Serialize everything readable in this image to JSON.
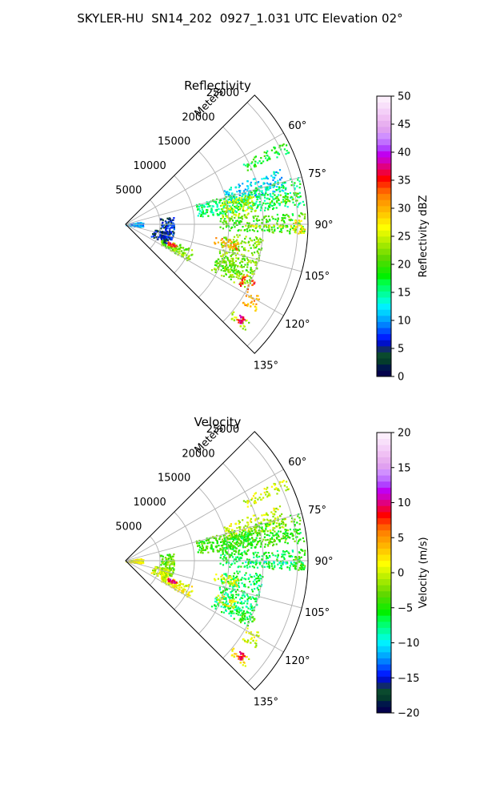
{
  "title": "SKYLER-HU  SN14_202  0927_1.031 UTC Elevation 02°",
  "panels": [
    {
      "title": "Reflectivity",
      "r_label": "Meters",
      "r_ticks": [
        "5000",
        "10000",
        "15000",
        "20000",
        "25000"
      ],
      "az_ticks": [
        "60°",
        "75°",
        "90°",
        "105°",
        "120°",
        "135°"
      ],
      "colorbar": {
        "label": "Reflectivity dBZ",
        "ticks": [
          "0",
          "5",
          "10",
          "15",
          "20",
          "25",
          "30",
          "35",
          "40",
          "45",
          "50"
        ],
        "colors": [
          "#04024c",
          "#00174a",
          "#043c2c",
          "#0a4a2e",
          "#102a6a",
          "#0010c8",
          "#0020ff",
          "#0050ff",
          "#0080ff",
          "#00aaff",
          "#00d0ff",
          "#00f0ff",
          "#00ffd0",
          "#00ffa0",
          "#00ff70",
          "#00ff40",
          "#00f000",
          "#20e800",
          "#40e000",
          "#60d800",
          "#80e000",
          "#a0e800",
          "#c0f000",
          "#e0f800",
          "#ffff00",
          "#ffe600",
          "#ffcc00",
          "#ffb400",
          "#ff9c00",
          "#ff8400",
          "#ff6000",
          "#ff3000",
          "#ff0000",
          "#f00040",
          "#e00080",
          "#d000c0",
          "#c000f0",
          "#b040ff",
          "#c070ff",
          "#d090ff",
          "#e0a0f0",
          "#e8b0f0",
          "#f0c0f4",
          "#f4d0f8",
          "#f8e0fa",
          "#fceefc"
        ]
      }
    },
    {
      "title": "Velocity",
      "r_label": "Meters",
      "r_ticks": [
        "5000",
        "10000",
        "15000",
        "20000",
        "25000"
      ],
      "az_ticks": [
        "60°",
        "75°",
        "90°",
        "105°",
        "120°",
        "135°"
      ],
      "colorbar": {
        "label": "Velocity (m/s)",
        "ticks": [
          "−20",
          "−15",
          "−10",
          "−5",
          "0",
          "5",
          "10",
          "15",
          "20"
        ],
        "colors": [
          "#04024c",
          "#00174a",
          "#043c2c",
          "#0a4a2e",
          "#102a6a",
          "#0010c8",
          "#0020ff",
          "#0050ff",
          "#0080ff",
          "#00aaff",
          "#00d0ff",
          "#00f0ff",
          "#00ffd0",
          "#00ffa0",
          "#00ff70",
          "#00ff40",
          "#00f000",
          "#20e800",
          "#40e000",
          "#60d800",
          "#80e000",
          "#a0e800",
          "#c0f000",
          "#e0f800",
          "#ffff00",
          "#ffe600",
          "#ffcc00",
          "#ffb400",
          "#ff9c00",
          "#ff8400",
          "#ff6000",
          "#ff3000",
          "#ff0000",
          "#f00040",
          "#e00080",
          "#d000c0",
          "#c000f0",
          "#b040ff",
          "#c070ff",
          "#d090ff",
          "#e0a0f0",
          "#e8b0f0",
          "#f0c0f4",
          "#f4d0f8",
          "#f8e0fa",
          "#fceefc"
        ]
      }
    }
  ],
  "chart_data": [
    {
      "type": "heatmap",
      "projection": "polar",
      "title": "Reflectivity",
      "r_label": "Meters",
      "r_range": [
        0,
        26500
      ],
      "r_ticks": [
        5000,
        10000,
        15000,
        20000,
        25000
      ],
      "az_range_deg": [
        45,
        135
      ],
      "az_ticks_deg": [
        60,
        75,
        90,
        105,
        120,
        135
      ],
      "grid": true,
      "colorbar": {
        "label": "Reflectivity dBZ",
        "range": [
          0,
          50
        ],
        "ticks": [
          0,
          5,
          10,
          15,
          20,
          25,
          30,
          35,
          40,
          45,
          50
        ]
      },
      "echo_regions": [
        {
          "az": [
            62,
            66
          ],
          "r": [
            19000,
            26000
          ],
          "value": 18
        },
        {
          "az": [
            70,
            78
          ],
          "r": [
            15000,
            24000
          ],
          "value": 12
        },
        {
          "az": [
            74,
            84
          ],
          "r": [
            10500,
            26000
          ],
          "value": 16
        },
        {
          "az": [
            76,
            86
          ],
          "r": [
            14000,
            19000
          ],
          "value": 24
        },
        {
          "az": [
            79,
            82
          ],
          "r": [
            21000,
            26000
          ],
          "value": 21
        },
        {
          "az": [
            86,
            93
          ],
          "r": [
            13500,
            26000
          ],
          "value": 20
        },
        {
          "az": [
            90,
            91
          ],
          "r": [
            17000,
            26000
          ],
          "value": 25
        },
        {
          "az": [
            88,
            93
          ],
          "r": [
            24000,
            26000
          ],
          "value": 28
        },
        {
          "az": [
            95,
            118
          ],
          "r": [
            14000,
            20000
          ],
          "value": 22
        },
        {
          "az": [
            98,
            103
          ],
          "r": [
            13000,
            16500
          ],
          "value": 31
        },
        {
          "az": [
            112,
            118
          ],
          "r": [
            18500,
            20500
          ],
          "value": 34
        },
        {
          "az": [
            118,
            124
          ],
          "r": [
            20000,
            22500
          ],
          "value": 30
        },
        {
          "az": [
            109,
            114
          ],
          "r": [
            14000,
            17000
          ],
          "value": 21
        },
        {
          "az": [
            128,
            132
          ],
          "r": [
            20000,
            23000
          ],
          "value": 24
        },
        {
          "az": [
            128,
            131
          ],
          "r": [
            21000,
            22000
          ],
          "value": 36
        },
        {
          "az": [
            110,
            120
          ],
          "r": [
            5500,
            10500
          ],
          "value": 22
        },
        {
          "az": [
            112,
            115
          ],
          "r": [
            6500,
            8000
          ],
          "value": 34
        },
        {
          "az": [
            80,
            110
          ],
          "r": [
            5000,
            7000
          ],
          "value": 6
        },
        {
          "az": [
            100,
            115
          ],
          "r": [
            4000,
            6500
          ],
          "value": 5
        },
        {
          "az": [
            80,
            100
          ],
          "r": [
            0,
            2500
          ],
          "value": 10
        }
      ]
    },
    {
      "type": "heatmap",
      "projection": "polar",
      "title": "Velocity",
      "r_label": "Meters",
      "r_range": [
        0,
        26500
      ],
      "r_ticks": [
        5000,
        10000,
        15000,
        20000,
        25000
      ],
      "az_range_deg": [
        45,
        135
      ],
      "az_ticks_deg": [
        60,
        75,
        90,
        105,
        120,
        135
      ],
      "grid": true,
      "colorbar": {
        "label": "Velocity (m/s)",
        "range": [
          -20,
          20
        ],
        "ticks": [
          -20,
          -15,
          -10,
          -5,
          0,
          5,
          10,
          15,
          20
        ]
      },
      "echo_regions": [
        {
          "az": [
            62,
            66
          ],
          "r": [
            19000,
            26000
          ],
          "value": 0
        },
        {
          "az": [
            70,
            78
          ],
          "r": [
            15000,
            24000
          ],
          "value": 0
        },
        {
          "az": [
            74,
            84
          ],
          "r": [
            10500,
            26000
          ],
          "value": -4
        },
        {
          "az": [
            76,
            86
          ],
          "r": [
            14000,
            19000
          ],
          "value": -5
        },
        {
          "az": [
            79,
            82
          ],
          "r": [
            21000,
            26000
          ],
          "value": -5
        },
        {
          "az": [
            86,
            93
          ],
          "r": [
            13500,
            26000
          ],
          "value": -6
        },
        {
          "az": [
            90,
            91
          ],
          "r": [
            17000,
            26000
          ],
          "value": -9
        },
        {
          "az": [
            88,
            93
          ],
          "r": [
            24000,
            26000
          ],
          "value": -4
        },
        {
          "az": [
            95,
            118
          ],
          "r": [
            14000,
            20000
          ],
          "value": -7
        },
        {
          "az": [
            98,
            103
          ],
          "r": [
            13000,
            16500
          ],
          "value": 1
        },
        {
          "az": [
            112,
            118
          ],
          "r": [
            18500,
            20500
          ],
          "value": -4
        },
        {
          "az": [
            118,
            124
          ],
          "r": [
            20000,
            22500
          ],
          "value": 0
        },
        {
          "az": [
            109,
            114
          ],
          "r": [
            14000,
            17000
          ],
          "value": 1
        },
        {
          "az": [
            128,
            132
          ],
          "r": [
            20000,
            23000
          ],
          "value": 2
        },
        {
          "az": [
            128,
            131
          ],
          "r": [
            21000,
            22000
          ],
          "value": 8
        },
        {
          "az": [
            110,
            120
          ],
          "r": [
            5500,
            10500
          ],
          "value": 1
        },
        {
          "az": [
            112,
            115
          ],
          "r": [
            6500,
            8000
          ],
          "value": 9
        },
        {
          "az": [
            80,
            110
          ],
          "r": [
            5000,
            7000
          ],
          "value": -3
        },
        {
          "az": [
            100,
            115
          ],
          "r": [
            4000,
            6500
          ],
          "value": 0
        },
        {
          "az": [
            80,
            100
          ],
          "r": [
            0,
            2500
          ],
          "value": 1
        }
      ]
    }
  ]
}
